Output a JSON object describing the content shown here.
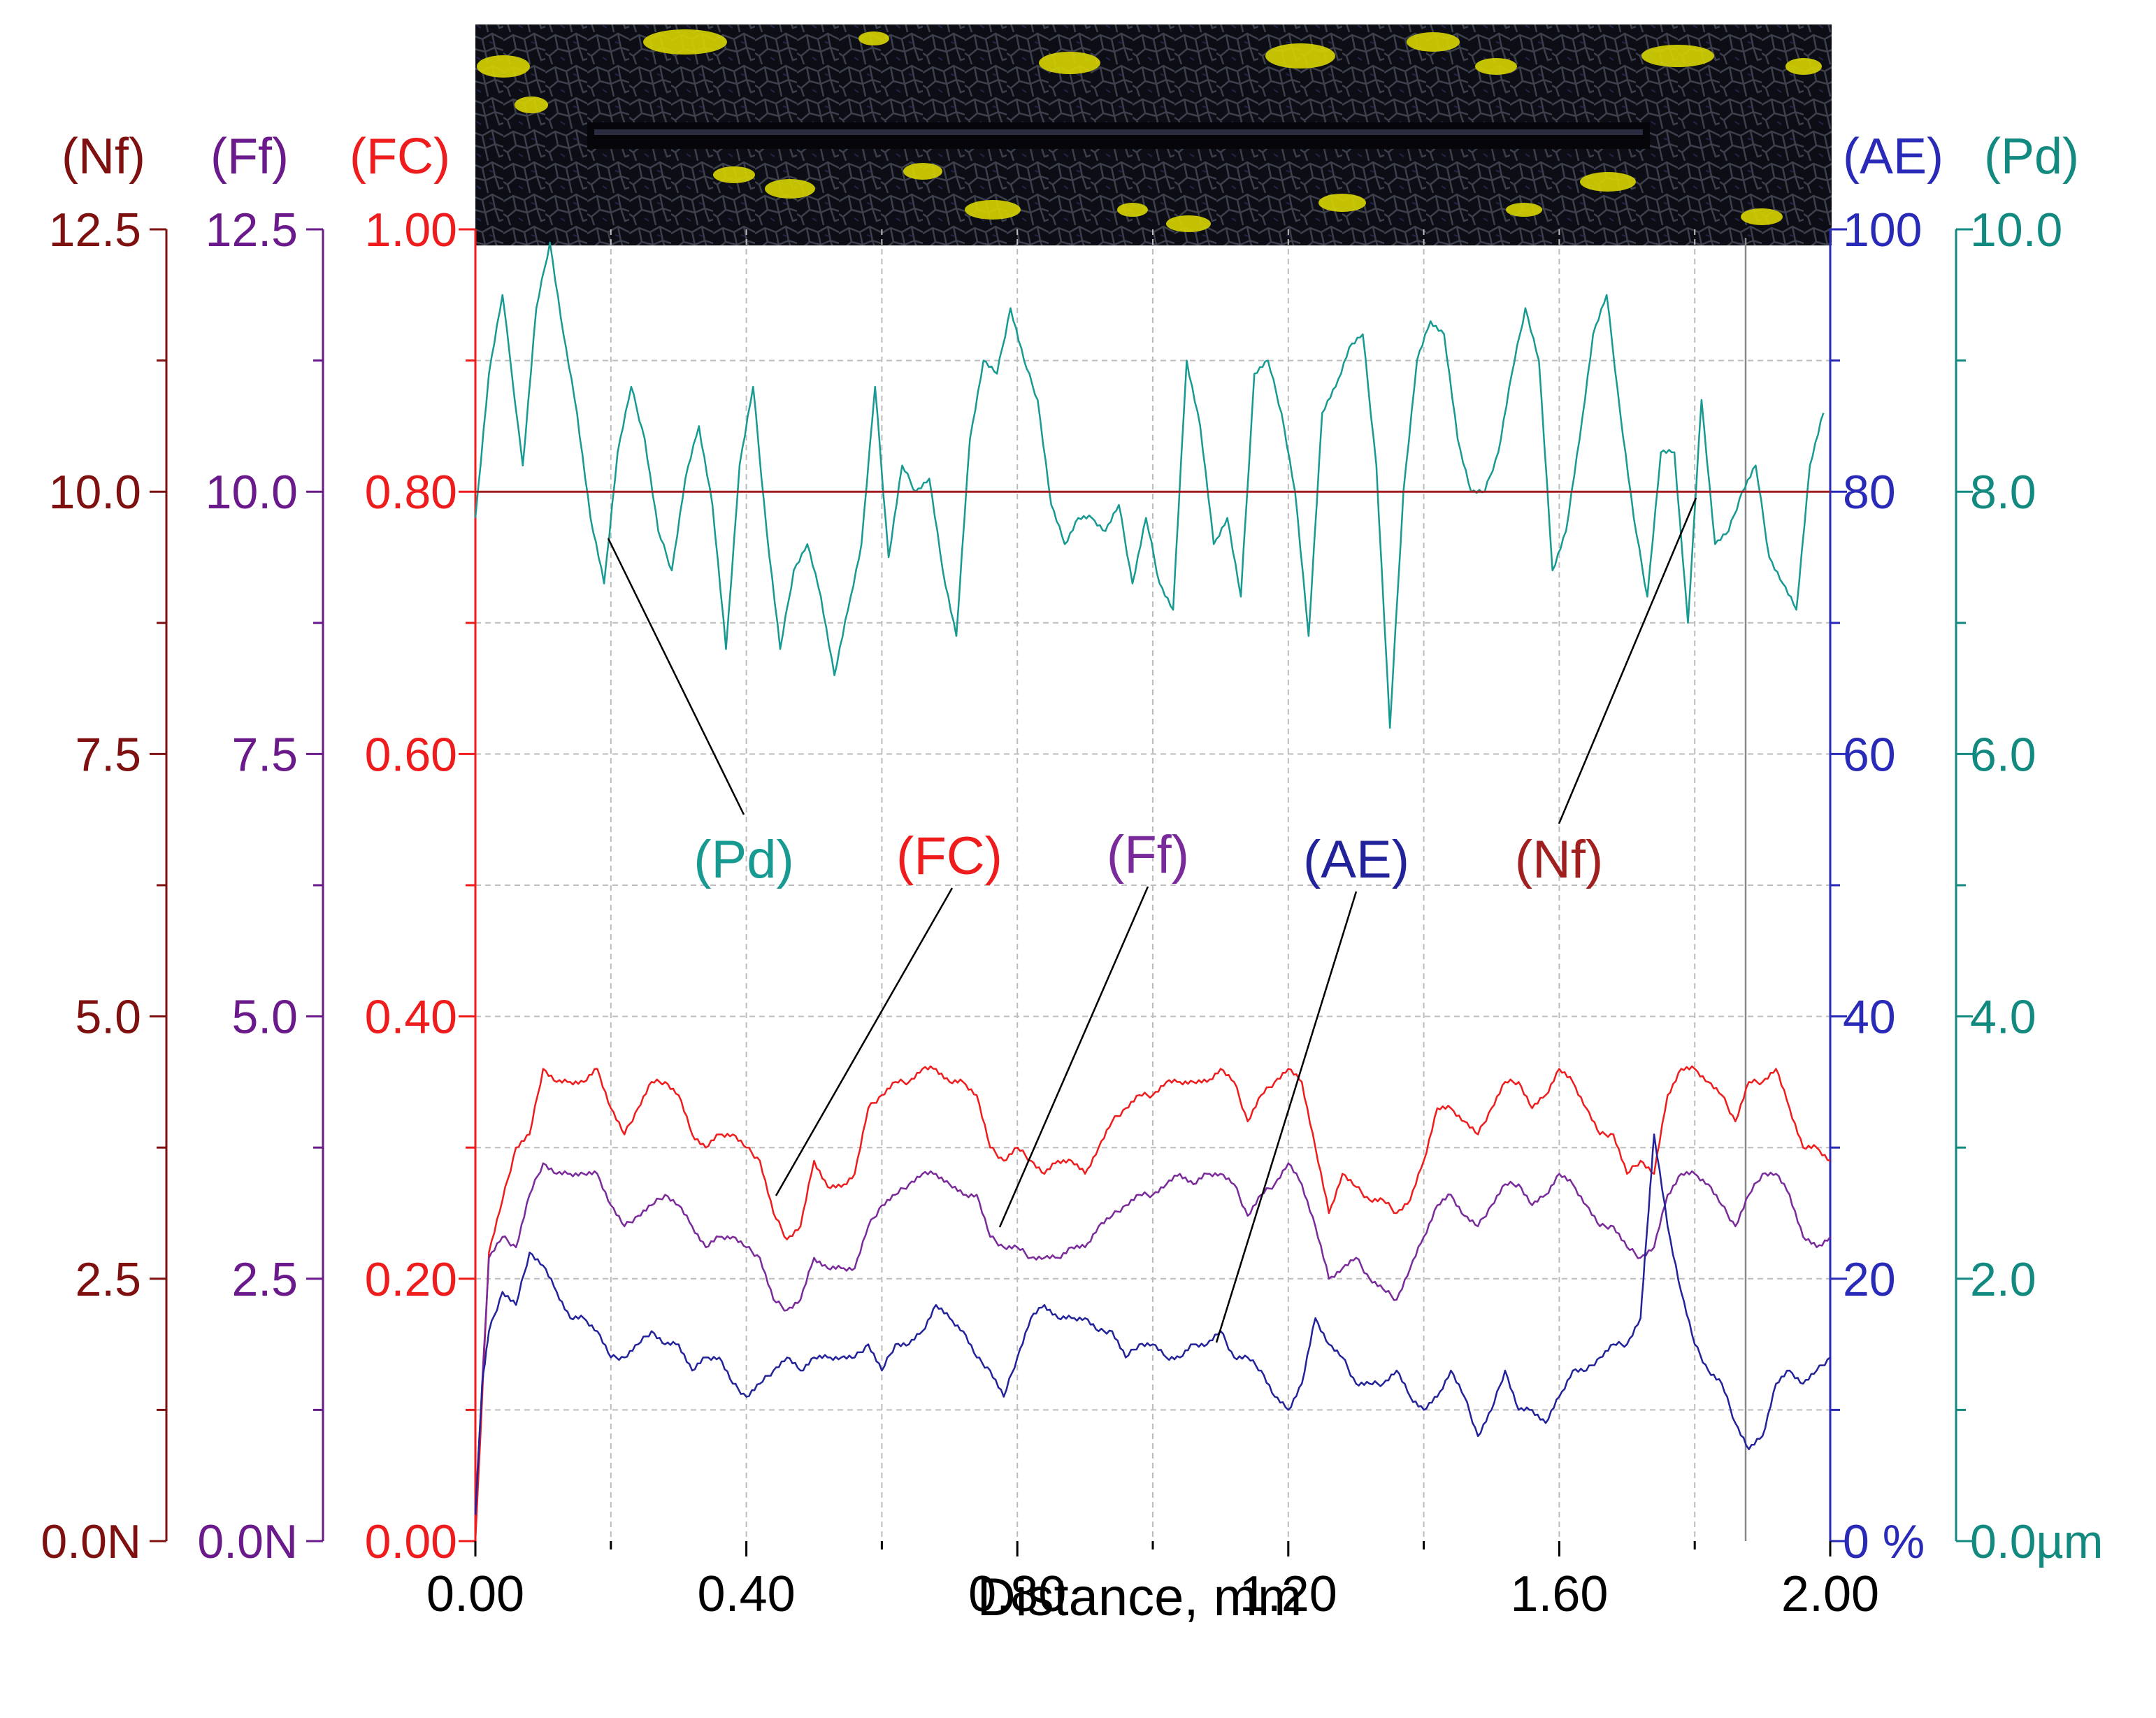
{
  "chart_data": {
    "type": "line",
    "xlabel": "Distance, mm",
    "x_ticks": [
      "0.00",
      "0.40",
      "0.80",
      "1.20",
      "1.60",
      "2.00"
    ],
    "xlim": [
      0,
      2.0
    ],
    "grid": true,
    "axes": {
      "Nf": {
        "header": "(Nf)",
        "color": "#7f1010",
        "range": [
          0,
          12.5
        ],
        "ticks": [
          "0.0N",
          "2.5",
          "5.0",
          "7.5",
          "10.0",
          "12.5"
        ]
      },
      "Ff": {
        "header": "(Ff)",
        "color": "#6a1a8a",
        "range": [
          0,
          12.5
        ],
        "ticks": [
          "0.0N",
          "2.5",
          "5.0",
          "7.5",
          "10.0",
          "12.5"
        ]
      },
      "FC": {
        "header": "(FC)",
        "color": "#ee1c1c",
        "range": [
          0,
          1.0
        ],
        "ticks": [
          "0.00",
          "0.20",
          "0.40",
          "0.60",
          "0.80",
          "1.00"
        ]
      },
      "AE": {
        "header": "(AE)",
        "color": "#2a2ab8",
        "range": [
          0,
          100
        ],
        "ticks": [
          "0 %",
          "20",
          "40",
          "60",
          "80",
          "100"
        ]
      },
      "Pd": {
        "header": "(Pd)",
        "color": "#128a80",
        "range": [
          0,
          10
        ],
        "ticks": [
          "0.0µm",
          "2.0",
          "4.0",
          "6.0",
          "8.0",
          "10.0"
        ]
      }
    },
    "series": [
      {
        "key": "Pd",
        "label": "(Pd)",
        "color": "#169a92",
        "axis": "Pd",
        "x": [
          0,
          0.02,
          0.04,
          0.07,
          0.09,
          0.11,
          0.13,
          0.15,
          0.17,
          0.19,
          0.21,
          0.23,
          0.25,
          0.27,
          0.29,
          0.31,
          0.33,
          0.35,
          0.37,
          0.39,
          0.41,
          0.43,
          0.45,
          0.47,
          0.49,
          0.51,
          0.53,
          0.55,
          0.57,
          0.59,
          0.61,
          0.63,
          0.65,
          0.67,
          0.69,
          0.71,
          0.73,
          0.75,
          0.77,
          0.79,
          0.81,
          0.83,
          0.85,
          0.87,
          0.89,
          0.91,
          0.93,
          0.95,
          0.97,
          0.99,
          1.01,
          1.03,
          1.05,
          1.07,
          1.09,
          1.11,
          1.13,
          1.15,
          1.17,
          1.19,
          1.21,
          1.23,
          1.25,
          1.27,
          1.29,
          1.31,
          1.33,
          1.35,
          1.37,
          1.39,
          1.41,
          1.43,
          1.45,
          1.47,
          1.49,
          1.51,
          1.53,
          1.55,
          1.57,
          1.59,
          1.61,
          1.63,
          1.65,
          1.67,
          1.69,
          1.71,
          1.73,
          1.75,
          1.77,
          1.79,
          1.81,
          1.83,
          1.85,
          1.87,
          1.89,
          1.91,
          1.93,
          1.95,
          1.97,
          1.99
        ],
        "y": [
          7.8,
          8.9,
          9.5,
          8.2,
          9.4,
          9.9,
          9.2,
          8.6,
          7.8,
          7.3,
          8.3,
          8.8,
          8.4,
          7.7,
          7.4,
          8.1,
          8.5,
          7.9,
          6.8,
          8.2,
          8.8,
          7.7,
          6.8,
          7.4,
          7.6,
          7.2,
          6.6,
          7.1,
          7.6,
          8.8,
          7.5,
          8.2,
          8.0,
          8.1,
          7.4,
          6.9,
          8.4,
          9.0,
          8.9,
          9.4,
          9.0,
          8.7,
          7.9,
          7.6,
          7.8,
          7.8,
          7.7,
          7.9,
          7.3,
          7.8,
          7.3,
          7.1,
          9.0,
          8.5,
          7.6,
          7.8,
          7.2,
          8.9,
          9.0,
          8.6,
          8.0,
          6.9,
          8.6,
          8.8,
          9.1,
          9.2,
          8.2,
          6.2,
          8.0,
          9.0,
          9.3,
          9.2,
          8.4,
          8.0,
          8.0,
          8.3,
          8.9,
          9.4,
          9.0,
          7.4,
          7.7,
          8.4,
          9.2,
          9.5,
          8.6,
          7.8,
          7.2,
          8.3,
          8.3,
          7.0,
          8.7,
          7.6,
          7.7,
          8.0,
          8.2,
          7.5,
          7.3,
          7.1,
          8.2,
          8.6
        ]
      },
      {
        "key": "Nf",
        "label": "(Nf)",
        "color": "#a02020",
        "axis": "Nf",
        "x": [
          0,
          0.25,
          0.5,
          0.75,
          1.0,
          1.25,
          1.5,
          1.75,
          2.0
        ],
        "y": [
          10.0,
          10.0,
          10.0,
          10.0,
          10.0,
          10.0,
          10.0,
          10.0,
          10.0
        ]
      },
      {
        "key": "FC",
        "label": "(FC)",
        "color": "#ee1c1c",
        "axis": "FC",
        "x": [
          0,
          0.02,
          0.04,
          0.06,
          0.08,
          0.1,
          0.12,
          0.14,
          0.16,
          0.18,
          0.2,
          0.22,
          0.24,
          0.26,
          0.28,
          0.3,
          0.32,
          0.34,
          0.36,
          0.38,
          0.4,
          0.42,
          0.44,
          0.46,
          0.48,
          0.5,
          0.52,
          0.54,
          0.56,
          0.58,
          0.6,
          0.62,
          0.64,
          0.66,
          0.68,
          0.7,
          0.72,
          0.74,
          0.76,
          0.78,
          0.8,
          0.82,
          0.84,
          0.86,
          0.88,
          0.9,
          0.92,
          0.94,
          0.96,
          0.98,
          1.0,
          1.02,
          1.04,
          1.06,
          1.08,
          1.1,
          1.12,
          1.14,
          1.16,
          1.18,
          1.2,
          1.22,
          1.24,
          1.26,
          1.28,
          1.3,
          1.32,
          1.34,
          1.36,
          1.38,
          1.4,
          1.42,
          1.44,
          1.46,
          1.48,
          1.5,
          1.52,
          1.54,
          1.56,
          1.58,
          1.6,
          1.62,
          1.64,
          1.66,
          1.68,
          1.7,
          1.72,
          1.74,
          1.76,
          1.78,
          1.8,
          1.82,
          1.84,
          1.86,
          1.88,
          1.9,
          1.92,
          1.94,
          1.96,
          1.98,
          2.0
        ],
        "y": [
          0.0,
          0.22,
          0.26,
          0.3,
          0.31,
          0.36,
          0.35,
          0.35,
          0.35,
          0.36,
          0.33,
          0.31,
          0.33,
          0.35,
          0.35,
          0.34,
          0.31,
          0.3,
          0.31,
          0.31,
          0.3,
          0.29,
          0.25,
          0.23,
          0.24,
          0.29,
          0.27,
          0.27,
          0.28,
          0.33,
          0.34,
          0.35,
          0.35,
          0.36,
          0.36,
          0.35,
          0.35,
          0.34,
          0.3,
          0.29,
          0.3,
          0.29,
          0.28,
          0.29,
          0.29,
          0.28,
          0.3,
          0.32,
          0.33,
          0.34,
          0.34,
          0.35,
          0.35,
          0.35,
          0.35,
          0.36,
          0.35,
          0.32,
          0.34,
          0.35,
          0.36,
          0.35,
          0.3,
          0.25,
          0.28,
          0.27,
          0.26,
          0.26,
          0.25,
          0.26,
          0.29,
          0.33,
          0.33,
          0.32,
          0.31,
          0.33,
          0.35,
          0.35,
          0.33,
          0.34,
          0.36,
          0.35,
          0.33,
          0.31,
          0.31,
          0.28,
          0.29,
          0.28,
          0.34,
          0.36,
          0.36,
          0.35,
          0.34,
          0.32,
          0.35,
          0.35,
          0.36,
          0.33,
          0.3,
          0.3,
          0.29
        ]
      },
      {
        "key": "Ff",
        "label": "(Ff)",
        "color": "#7a2a9a",
        "axis": "Ff",
        "x": [
          0,
          0.02,
          0.04,
          0.06,
          0.08,
          0.1,
          0.12,
          0.14,
          0.16,
          0.18,
          0.2,
          0.22,
          0.24,
          0.26,
          0.28,
          0.3,
          0.32,
          0.34,
          0.36,
          0.38,
          0.4,
          0.42,
          0.44,
          0.46,
          0.48,
          0.5,
          0.52,
          0.54,
          0.56,
          0.58,
          0.6,
          0.62,
          0.64,
          0.66,
          0.68,
          0.7,
          0.72,
          0.74,
          0.76,
          0.78,
          0.8,
          0.82,
          0.84,
          0.86,
          0.88,
          0.9,
          0.92,
          0.94,
          0.96,
          0.98,
          1.0,
          1.02,
          1.04,
          1.06,
          1.08,
          1.1,
          1.12,
          1.14,
          1.16,
          1.18,
          1.2,
          1.22,
          1.24,
          1.26,
          1.28,
          1.3,
          1.32,
          1.34,
          1.36,
          1.38,
          1.4,
          1.42,
          1.44,
          1.46,
          1.48,
          1.5,
          1.52,
          1.54,
          1.56,
          1.58,
          1.6,
          1.62,
          1.64,
          1.66,
          1.68,
          1.7,
          1.72,
          1.74,
          1.76,
          1.78,
          1.8,
          1.82,
          1.84,
          1.86,
          1.88,
          1.9,
          1.92,
          1.94,
          1.96,
          1.98,
          2.0
        ],
        "y": [
          0.3,
          2.7,
          2.9,
          2.8,
          3.3,
          3.6,
          3.5,
          3.5,
          3.5,
          3.5,
          3.2,
          3.0,
          3.1,
          3.2,
          3.3,
          3.2,
          3.0,
          2.8,
          2.9,
          2.9,
          2.8,
          2.7,
          2.3,
          2.2,
          2.3,
          2.7,
          2.6,
          2.6,
          2.6,
          3.0,
          3.2,
          3.3,
          3.4,
          3.5,
          3.5,
          3.4,
          3.3,
          3.3,
          2.9,
          2.8,
          2.8,
          2.7,
          2.7,
          2.7,
          2.8,
          2.8,
          3.0,
          3.1,
          3.2,
          3.3,
          3.3,
          3.4,
          3.5,
          3.4,
          3.5,
          3.5,
          3.4,
          3.1,
          3.3,
          3.4,
          3.6,
          3.4,
          3.0,
          2.5,
          2.6,
          2.7,
          2.5,
          2.4,
          2.3,
          2.6,
          2.9,
          3.2,
          3.3,
          3.1,
          3.0,
          3.2,
          3.4,
          3.4,
          3.2,
          3.3,
          3.5,
          3.4,
          3.2,
          3.0,
          3.0,
          2.8,
          2.7,
          2.8,
          3.3,
          3.5,
          3.5,
          3.4,
          3.2,
          3.0,
          3.3,
          3.5,
          3.5,
          3.3,
          2.9,
          2.8,
          2.9
        ]
      },
      {
        "key": "AE",
        "label": "(AE)",
        "color": "#22229a",
        "axis": "AE",
        "x": [
          0,
          0.01,
          0.02,
          0.04,
          0.06,
          0.08,
          0.1,
          0.12,
          0.14,
          0.16,
          0.18,
          0.2,
          0.22,
          0.24,
          0.26,
          0.28,
          0.3,
          0.32,
          0.34,
          0.36,
          0.38,
          0.4,
          0.42,
          0.44,
          0.46,
          0.48,
          0.5,
          0.52,
          0.54,
          0.56,
          0.58,
          0.6,
          0.62,
          0.64,
          0.66,
          0.68,
          0.7,
          0.72,
          0.74,
          0.76,
          0.78,
          0.8,
          0.82,
          0.84,
          0.86,
          0.88,
          0.9,
          0.92,
          0.94,
          0.96,
          0.98,
          1.0,
          1.02,
          1.04,
          1.06,
          1.08,
          1.1,
          1.12,
          1.14,
          1.16,
          1.18,
          1.2,
          1.22,
          1.24,
          1.26,
          1.28,
          1.3,
          1.32,
          1.34,
          1.36,
          1.38,
          1.4,
          1.42,
          1.44,
          1.46,
          1.48,
          1.5,
          1.52,
          1.54,
          1.56,
          1.58,
          1.6,
          1.62,
          1.64,
          1.66,
          1.68,
          1.7,
          1.72,
          1.73,
          1.74,
          1.76,
          1.78,
          1.8,
          1.82,
          1.84,
          1.86,
          1.88,
          1.9,
          1.92,
          1.94,
          1.96,
          1.98,
          2.0
        ],
        "y": [
          2,
          12,
          16,
          19,
          18,
          22,
          21,
          19,
          17,
          17,
          16,
          14,
          14,
          15,
          16,
          15,
          15,
          13,
          14,
          14,
          12,
          11,
          12,
          13,
          14,
          13,
          14,
          14,
          14,
          14,
          15,
          13,
          15,
          15,
          16,
          18,
          17,
          16,
          14,
          13,
          11,
          14,
          17,
          18,
          17,
          17,
          17,
          16,
          16,
          14,
          15,
          15,
          14,
          14,
          15,
          15,
          16,
          14,
          14,
          13,
          11,
          10,
          12,
          17,
          15,
          14,
          12,
          12,
          12,
          13,
          11,
          10,
          11,
          13,
          11,
          8,
          10,
          13,
          10,
          10,
          9,
          11,
          13,
          13,
          14,
          15,
          15,
          17,
          24,
          31,
          24,
          19,
          15,
          13,
          12,
          9,
          7,
          8,
          12,
          13,
          12,
          13,
          14
        ]
      }
    ],
    "legend_labels": [
      "(Pd)",
      "(FC)",
      "(Ff)",
      "(AE)",
      "(Nf)"
    ]
  }
}
